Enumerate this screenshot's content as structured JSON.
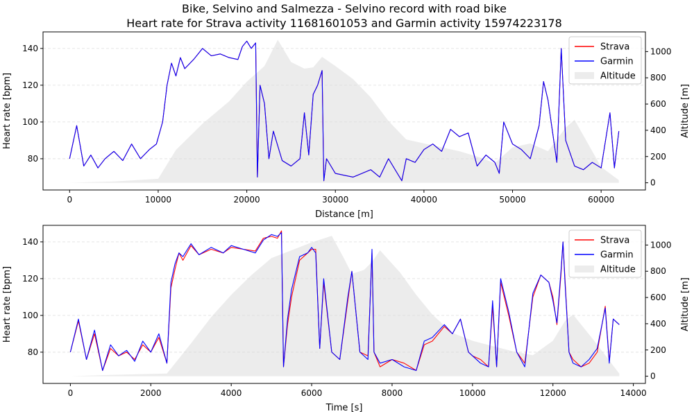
{
  "figure": {
    "title_line1": "Bike, Selvino and Salmezza - Selvino record with road bike",
    "title_line2": "Heart rate for Strava activity 11681601053 and Garmin activity 15974223178"
  },
  "colors": {
    "strava": "#ff0000",
    "garmin": "#0000ff",
    "altitude_fill": "#ececec",
    "grid": "#dddddd"
  },
  "chart_data": [
    {
      "type": "line",
      "xlabel": "Distance [m]",
      "ylabel": "Heart rate [bpm]",
      "y2label": "Altitude [m]",
      "xlim": [
        -3000,
        65000
      ],
      "ylim": [
        63,
        149
      ],
      "y2lim": [
        -55,
        1150
      ],
      "xticks": [
        0,
        10000,
        20000,
        30000,
        40000,
        50000,
        60000
      ],
      "yticks": [
        80,
        100,
        120,
        140
      ],
      "y2ticks": [
        0,
        200,
        400,
        600,
        800,
        1000
      ],
      "grid": "horizontal dashed",
      "legend": {
        "placement": "top-right",
        "labels": [
          "Strava",
          "Garmin",
          "Altitude"
        ]
      },
      "altitude": {
        "x": [
          0,
          5000,
          10000,
          12000,
          15000,
          18000,
          20000,
          22000,
          23500,
          25000,
          26500,
          27500,
          28500,
          30000,
          32000,
          34000,
          36000,
          38000,
          40000,
          44000,
          46000,
          48000,
          50000,
          52000,
          54000,
          56000,
          57000,
          58000,
          60000,
          62000
        ],
        "y": [
          0,
          10,
          30,
          250,
          450,
          620,
          770,
          890,
          1090,
          920,
          870,
          880,
          960,
          890,
          790,
          650,
          470,
          330,
          300,
          240,
          200,
          150,
          270,
          300,
          240,
          420,
          480,
          360,
          120,
          20
        ]
      },
      "series": [
        {
          "name": "Strava",
          "x": [
            0,
            800,
            1600,
            2400,
            3200,
            4000,
            5000,
            6000,
            7000,
            8000,
            9000,
            9800,
            10500,
            11000,
            11500,
            12000,
            12500,
            13000,
            14000,
            15000,
            16000,
            17000,
            18000,
            19000,
            19500,
            20000,
            20500,
            21000,
            21200,
            21500,
            22000,
            22500,
            23000,
            24000,
            25000,
            26000,
            26500,
            27000,
            27500,
            28000,
            28500,
            28700,
            29000,
            30000,
            31000,
            32000,
            33000,
            34000,
            35000,
            36000,
            37000,
            37500,
            38000,
            39000,
            40000,
            41000,
            42000,
            43000,
            44000,
            45000,
            46000,
            47000,
            48000,
            48500,
            49000,
            50000,
            51000,
            52000,
            53000,
            53500,
            54000,
            55000,
            55500,
            56000,
            57000,
            58000,
            59000,
            60000,
            61000,
            61500,
            62000
          ],
          "y": [
            80,
            98,
            76,
            82,
            75,
            80,
            84,
            79,
            88,
            80,
            85,
            88,
            100,
            120,
            132,
            125,
            135,
            129,
            134,
            140,
            136,
            137,
            135,
            134,
            141,
            144,
            140,
            143,
            70,
            120,
            110,
            80,
            95,
            79,
            76,
            80,
            105,
            82,
            115,
            120,
            128,
            68,
            80,
            72,
            71,
            70,
            72,
            74,
            70,
            80,
            72,
            68,
            80,
            78,
            85,
            88,
            84,
            96,
            92,
            94,
            76,
            82,
            78,
            72,
            100,
            88,
            85,
            80,
            98,
            122,
            112,
            78,
            140,
            90,
            76,
            74,
            78,
            75,
            105,
            75,
            95
          ]
        },
        {
          "name": "Garmin",
          "x": [
            0,
            800,
            1600,
            2400,
            3200,
            4000,
            5000,
            6000,
            7000,
            8000,
            9000,
            9800,
            10500,
            11000,
            11500,
            12000,
            12500,
            13000,
            14000,
            15000,
            16000,
            17000,
            18000,
            19000,
            19500,
            20000,
            20500,
            21000,
            21200,
            21500,
            22000,
            22500,
            23000,
            24000,
            25000,
            26000,
            26500,
            27000,
            27500,
            28000,
            28500,
            28700,
            29000,
            30000,
            31000,
            32000,
            33000,
            34000,
            35000,
            36000,
            37000,
            37500,
            38000,
            39000,
            40000,
            41000,
            42000,
            43000,
            44000,
            45000,
            46000,
            47000,
            48000,
            48500,
            49000,
            50000,
            51000,
            52000,
            53000,
            53500,
            54000,
            55000,
            55500,
            56000,
            57000,
            58000,
            59000,
            60000,
            61000,
            61500,
            62000
          ],
          "y": [
            80,
            98,
            76,
            82,
            75,
            80,
            84,
            79,
            88,
            80,
            85,
            88,
            100,
            120,
            132,
            125,
            135,
            129,
            134,
            140,
            136,
            137,
            135,
            134,
            141,
            144,
            140,
            143,
            70,
            120,
            110,
            80,
            95,
            79,
            76,
            80,
            105,
            82,
            115,
            120,
            128,
            68,
            80,
            72,
            71,
            70,
            72,
            74,
            70,
            80,
            72,
            68,
            80,
            78,
            85,
            88,
            84,
            96,
            92,
            94,
            76,
            82,
            78,
            72,
            100,
            88,
            85,
            80,
            98,
            122,
            112,
            78,
            140,
            90,
            76,
            74,
            78,
            75,
            105,
            75,
            95
          ]
        }
      ]
    },
    {
      "type": "line",
      "xlabel": "Time [s]",
      "ylabel": "Heart rate [bpm]",
      "y2label": "Altitude [m]",
      "xlim": [
        -680,
        14300
      ],
      "ylim": [
        63,
        149
      ],
      "y2lim": [
        -55,
        1150
      ],
      "xticks": [
        0,
        2000,
        4000,
        6000,
        8000,
        10000,
        12000,
        14000
      ],
      "yticks": [
        80,
        100,
        120,
        140
      ],
      "y2ticks": [
        0,
        200,
        400,
        600,
        800,
        1000
      ],
      "grid": "horizontal dashed",
      "legend": {
        "placement": "top-right",
        "labels": [
          "Strava",
          "Garmin",
          "Altitude"
        ]
      },
      "altitude": {
        "x": [
          0,
          1000,
          2400,
          3000,
          3500,
          4000,
          4500,
          5000,
          5500,
          6000,
          6500,
          6800,
          7000,
          7300,
          7500,
          7700,
          8200,
          8600,
          9000,
          9500,
          10000,
          10500,
          11000,
          11500,
          12000,
          12300,
          12500,
          13000,
          13500,
          13650
        ],
        "y": [
          0,
          10,
          20,
          250,
          450,
          620,
          770,
          900,
          960,
          1020,
          1070,
          900,
          780,
          810,
          870,
          960,
          790,
          620,
          470,
          330,
          270,
          230,
          190,
          160,
          270,
          420,
          470,
          280,
          80,
          20
        ]
      },
      "series": [
        {
          "name": "Strava",
          "x": [
            0,
            200,
            400,
            600,
            800,
            1000,
            1200,
            1400,
            1600,
            1800,
            2000,
            2200,
            2400,
            2500,
            2600,
            2700,
            2800,
            3000,
            3200,
            3500,
            3800,
            4000,
            4300,
            4600,
            4800,
            5000,
            5150,
            5250,
            5300,
            5400,
            5500,
            5700,
            5900,
            6000,
            6100,
            6200,
            6300,
            6500,
            6700,
            6900,
            7000,
            7200,
            7400,
            7500,
            7550,
            7700,
            8000,
            8300,
            8600,
            8800,
            9000,
            9300,
            9500,
            9700,
            9900,
            10000,
            10200,
            10400,
            10500,
            10600,
            10700,
            10900,
            11100,
            11300,
            11500,
            11700,
            11900,
            12000,
            12100,
            12200,
            12250,
            12300,
            12400,
            12500,
            12700,
            12900,
            13100,
            13300,
            13400,
            13500,
            13650
          ],
          "y": [
            80,
            97,
            76,
            90,
            70,
            82,
            78,
            80,
            76,
            84,
            80,
            88,
            74,
            115,
            125,
            134,
            130,
            138,
            133,
            136,
            134,
            137,
            136,
            135,
            142,
            143,
            142,
            146,
            72,
            95,
            110,
            130,
            134,
            136,
            136,
            82,
            118,
            80,
            76,
            108,
            124,
            80,
            78,
            134,
            80,
            72,
            76,
            74,
            70,
            84,
            86,
            94,
            90,
            98,
            80,
            78,
            76,
            72,
            105,
            72,
            118,
            100,
            80,
            74,
            110,
            122,
            118,
            110,
            95,
            122,
            140,
            120,
            80,
            76,
            72,
            74,
            80,
            105,
            75,
            98,
            95
          ]
        },
        {
          "name": "Garmin",
          "x": [
            0,
            200,
            400,
            600,
            800,
            1000,
            1200,
            1400,
            1600,
            1800,
            2000,
            2200,
            2400,
            2500,
            2600,
            2700,
            2800,
            3000,
            3200,
            3500,
            3800,
            4000,
            4300,
            4600,
            4800,
            5000,
            5150,
            5250,
            5300,
            5400,
            5500,
            5700,
            5900,
            6000,
            6100,
            6200,
            6300,
            6500,
            6700,
            6900,
            7000,
            7200,
            7400,
            7500,
            7550,
            7700,
            8000,
            8300,
            8600,
            8800,
            9000,
            9300,
            9500,
            9700,
            9900,
            10000,
            10200,
            10400,
            10500,
            10600,
            10700,
            10900,
            11100,
            11300,
            11500,
            11700,
            11900,
            12000,
            12100,
            12200,
            12250,
            12300,
            12400,
            12500,
            12700,
            12900,
            13100,
            13300,
            13400,
            13500,
            13650
          ],
          "y": [
            80,
            98,
            76,
            92,
            70,
            84,
            78,
            81,
            75,
            86,
            80,
            90,
            74,
            118,
            128,
            134,
            132,
            139,
            133,
            137,
            134,
            138,
            136,
            134,
            141,
            144,
            143,
            145,
            72,
            98,
            114,
            132,
            134,
            137,
            134,
            82,
            120,
            80,
            76,
            110,
            124,
            80,
            76,
            136,
            80,
            74,
            76,
            72,
            70,
            86,
            88,
            95,
            90,
            98,
            80,
            78,
            74,
            72,
            108,
            72,
            120,
            102,
            80,
            72,
            112,
            122,
            118,
            108,
            96,
            124,
            140,
            118,
            80,
            74,
            72,
            76,
            82,
            104,
            74,
            98,
            95
          ]
        }
      ]
    }
  ]
}
